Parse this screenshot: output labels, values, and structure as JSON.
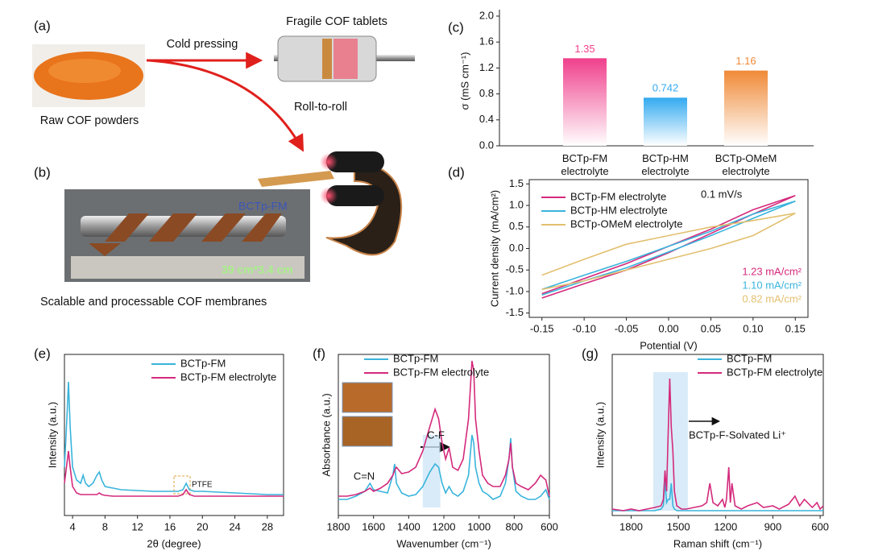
{
  "figure": {
    "a": {
      "panel": "(a)",
      "cold_pressing": "Cold pressing",
      "tablets": "Fragile COF tablets",
      "powders": "Raw COF powders",
      "roll": "Roll-to-roll"
    },
    "b": {
      "panel": "(b)",
      "sample": "BCTp-FM",
      "size": "39 cm*3.4 cm",
      "caption": "Scalable and processable COF membranes"
    }
  },
  "chart_data": [
    {
      "type": "bar",
      "panel": "(c)",
      "y_label": "σ (mS cm⁻¹)",
      "categories": [
        "BCTp-FM electrolyte",
        "BCTp-HM electrolyte",
        "BCTp-OMeM electrolyte"
      ],
      "values": [
        1.35,
        0.742,
        1.16
      ],
      "colors": [
        "#f0408c",
        "#33aaf0",
        "#f08a38"
      ],
      "ylim": [
        0,
        2
      ],
      "yticks": [
        {
          "value": 0,
          "label": "0.0"
        },
        0.4,
        0.8,
        1.2,
        1.6,
        {
          "value": 2,
          "label": "2.0"
        }
      ]
    },
    {
      "type": "line",
      "panel": "(d)",
      "x_label": "Potential (V)",
      "y_label": "Current density (mA/cm²)",
      "annotations": [
        "0.1 mV/s"
      ],
      "legend": "upper left",
      "x": [
        -0.15,
        -0.1,
        -0.05,
        0,
        0.05,
        0.1,
        0.15,
        0.1,
        0.05,
        0,
        -0.05,
        -0.1,
        -0.15
      ],
      "series": [
        {
          "name": "BCTp-FM electrolyte",
          "color": "#d42a7c",
          "label": "1.23 mA/cm²",
          "values": [
            -1.15,
            -0.82,
            -0.5,
            -0.1,
            0.35,
            0.8,
            1.23,
            0.9,
            0.45,
            0.05,
            -0.35,
            -0.7,
            -1.05
          ]
        },
        {
          "name": "BCTp-HM electrolyte",
          "color": "#3ab4dc",
          "label": "1.10 mA/cm²",
          "values": [
            -1.08,
            -0.75,
            -0.45,
            -0.08,
            0.3,
            0.7,
            1.1,
            0.8,
            0.4,
            0.05,
            -0.3,
            -0.62,
            -0.95
          ]
        },
        {
          "name": "BCTp-OMeM electrolyte",
          "color": "#e2c070",
          "label": "0.82 mA/cm²",
          "values": [
            -0.95,
            -0.75,
            -0.5,
            -0.25,
            0,
            0.3,
            0.82,
            0.65,
            0.5,
            0.3,
            0.1,
            -0.25,
            -0.62
          ]
        }
      ],
      "xlim": [
        -0.165,
        0.165
      ],
      "xticks": [
        -0.15,
        {
          "value": -0.1,
          "label": "-0.10"
        },
        -0.05,
        {
          "value": 0,
          "label": "0.00"
        },
        0.05,
        {
          "value": 0.1,
          "label": "0.10"
        },
        0.15
      ],
      "ylim": [
        -1.6,
        1.6
      ],
      "yticks": [
        1.5,
        {
          "value": 1,
          "label": "1.0"
        },
        0.5,
        {
          "value": 0,
          "label": "0.0"
        },
        -0.5,
        {
          "value": -1,
          "label": "-1.0"
        },
        -1.5
      ]
    },
    {
      "type": "line",
      "panel": "(e)",
      "x_label": "2θ (degree)",
      "y_label": "Intensity (a.u.)",
      "annotations": [
        "PTFE"
      ],
      "legend": "upper right",
      "x": [
        3,
        3.3,
        3.5,
        3.7,
        4,
        4.5,
        5,
        5.3,
        5.6,
        6,
        6.5,
        7,
        7.3,
        7.6,
        8,
        9,
        10,
        12,
        14,
        16,
        17,
        17.6,
        18,
        18.4,
        19,
        20,
        22,
        24,
        26,
        28,
        30
      ],
      "series": [
        {
          "name": "BCTp-FM",
          "color": "#3ab4dc",
          "values": [
            0.3,
            0.6,
            0.83,
            0.55,
            0.3,
            0.22,
            0.2,
            0.25,
            0.2,
            0.18,
            0.2,
            0.25,
            0.27,
            0.22,
            0.18,
            0.17,
            0.16,
            0.155,
            0.15,
            0.15,
            0.15,
            0.16,
            0.2,
            0.16,
            0.15,
            0.15,
            0.145,
            0.14,
            0.135,
            0.13,
            0.13
          ]
        },
        {
          "name": "BCTp-FM electrolyte",
          "color": "#d42a7c",
          "values": [
            0.2,
            0.32,
            0.4,
            0.3,
            0.18,
            0.14,
            0.13,
            0.13,
            0.13,
            0.13,
            0.13,
            0.13,
            0.14,
            0.13,
            0.125,
            0.12,
            0.12,
            0.12,
            0.12,
            0.12,
            0.12,
            0.13,
            0.16,
            0.13,
            0.12,
            0.12,
            0.12,
            0.12,
            0.12,
            0.12,
            0.12
          ]
        }
      ],
      "xlim": [
        3,
        30
      ],
      "xticks": [
        4,
        8,
        12,
        16,
        20,
        24,
        28
      ],
      "ylim": [
        0,
        1
      ]
    },
    {
      "type": "line",
      "panel": "(f)",
      "x_label": "Wavenumber (cm⁻¹)",
      "y_label": "Absorbance (a.u.)",
      "annotations": [
        "C=N",
        "C-F"
      ],
      "legend": "upper left",
      "highlight": [
        1320,
        1220
      ],
      "x": [
        1800,
        1750,
        1700,
        1650,
        1620,
        1600,
        1560,
        1520,
        1490,
        1480,
        1470,
        1440,
        1400,
        1360,
        1320,
        1280,
        1250,
        1230,
        1210,
        1190,
        1170,
        1150,
        1120,
        1090,
        1060,
        1040,
        1030,
        1020,
        1000,
        980,
        950,
        920,
        880,
        850,
        830,
        820,
        810,
        790,
        760,
        720,
        680,
        650,
        620,
        600
      ],
      "series": [
        {
          "name": "BCTp-FM",
          "color": "#3ab4dc",
          "values": [
            0.1,
            0.1,
            0.12,
            0.15,
            0.2,
            0.16,
            0.15,
            0.14,
            0.25,
            0.32,
            0.2,
            0.14,
            0.12,
            0.13,
            0.18,
            0.27,
            0.32,
            0.3,
            0.2,
            0.14,
            0.18,
            0.14,
            0.12,
            0.15,
            0.25,
            0.5,
            0.45,
            0.3,
            0.2,
            0.15,
            0.13,
            0.1,
            0.12,
            0.2,
            0.35,
            0.48,
            0.3,
            0.15,
            0.12,
            0.1,
            0.1,
            0.12,
            0.16,
            0.1
          ]
        },
        {
          "name": "BCTp-FM electrolyte",
          "color": "#d42a7c",
          "values": [
            0.12,
            0.12,
            0.13,
            0.15,
            0.17,
            0.15,
            0.17,
            0.2,
            0.25,
            0.28,
            0.3,
            0.26,
            0.27,
            0.3,
            0.4,
            0.55,
            0.66,
            0.6,
            0.45,
            0.35,
            0.42,
            0.3,
            0.28,
            0.35,
            0.6,
            0.96,
            0.9,
            0.6,
            0.4,
            0.25,
            0.2,
            0.18,
            0.18,
            0.25,
            0.35,
            0.45,
            0.3,
            0.2,
            0.18,
            0.16,
            0.2,
            0.25,
            0.22,
            0.12
          ]
        }
      ],
      "xlim": [
        1800,
        600
      ],
      "xticks": [
        1800,
        1600,
        1400,
        1200,
        1000,
        800,
        600
      ],
      "ylim": [
        0,
        1
      ]
    },
    {
      "type": "line",
      "panel": "(g)",
      "x_label": "Raman shift (cm⁻¹)",
      "y_label": "Intensity (a.u.)",
      "annotations": [
        "BCTp-F-Solvated Li⁺"
      ],
      "legend": "upper right",
      "highlight": [
        1660,
        1440
      ],
      "x": [
        1920,
        1850,
        1800,
        1750,
        1700,
        1650,
        1610,
        1595,
        1585,
        1575,
        1565,
        1555,
        1545,
        1535,
        1525,
        1510,
        1480,
        1450,
        1400,
        1350,
        1320,
        1300,
        1280,
        1250,
        1220,
        1205,
        1195,
        1180,
        1170,
        1160,
        1140,
        1120,
        1100,
        1060,
        1000,
        960,
        900,
        860,
        800,
        760,
        730,
        700,
        650,
        620,
        600,
        580
      ],
      "series": [
        {
          "name": "BCTp-FM",
          "color": "#3ab4dc",
          "values": [
            0.03,
            0.03,
            0.03,
            0.03,
            0.03,
            0.03,
            0.04,
            0.06,
            0.22,
            0.08,
            0.1,
            0.1,
            0.2,
            0.06,
            0.04,
            0.03,
            0.03,
            0.03,
            0.03,
            0.03,
            0.03,
            0.03,
            0.03,
            0.03,
            0.03,
            0.03,
            0.03,
            0.03,
            0.03,
            0.03,
            0.03,
            0.03,
            0.03,
            0.03,
            0.03,
            0.03,
            0.03,
            0.03,
            0.03,
            0.03,
            0.03,
            0.03,
            0.03,
            0.03,
            0.03,
            0.03
          ]
        },
        {
          "name": "BCTp-FM electrolyte",
          "color": "#d42a7c",
          "values": [
            0.04,
            0.03,
            0.04,
            0.03,
            0.04,
            0.05,
            0.06,
            0.1,
            0.28,
            0.15,
            0.5,
            0.85,
            0.55,
            0.4,
            0.15,
            0.06,
            0.04,
            0.04,
            0.05,
            0.06,
            0.08,
            0.2,
            0.08,
            0.06,
            0.1,
            0.05,
            0.1,
            0.3,
            0.08,
            0.2,
            0.06,
            0.05,
            0.04,
            0.06,
            0.08,
            0.05,
            0.06,
            0.04,
            0.07,
            0.12,
            0.06,
            0.1,
            0.05,
            0.08,
            0.04,
            0.06
          ]
        }
      ],
      "xlim": [
        1920,
        580
      ],
      "xticks": [
        1800,
        1500,
        1200,
        900,
        600
      ],
      "ylim": [
        0,
        1
      ]
    }
  ]
}
